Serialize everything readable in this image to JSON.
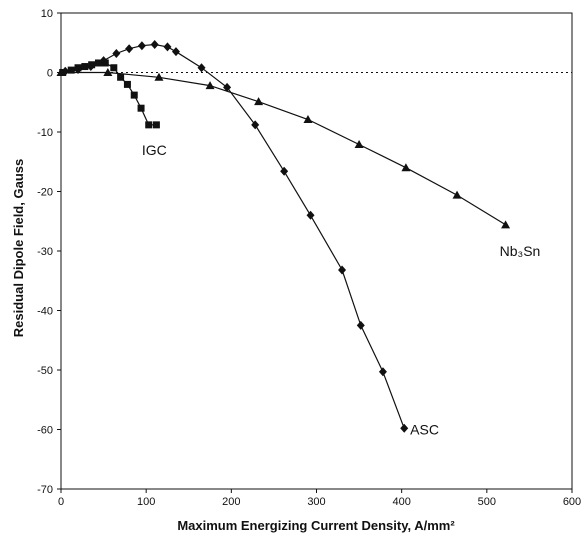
{
  "chart_data": {
    "type": "line",
    "title": "",
    "xlabel": "Maximum Energizing Current Density, A/mm²",
    "ylabel": "Residual Dipole Field, Gauss",
    "xlim": [
      0,
      600
    ],
    "ylim": [
      -70,
      10
    ],
    "xticks": [
      0,
      100,
      200,
      300,
      400,
      500,
      600
    ],
    "yticks": [
      -70,
      -60,
      -50,
      -40,
      -30,
      -20,
      -10,
      0,
      10
    ],
    "zero_line": "dotted",
    "grid": false,
    "legend": "none",
    "series": [
      {
        "name": "IGC",
        "label_at": [
          95,
          -13
        ],
        "marker": "square",
        "color": "#111111",
        "x": [
          2,
          12,
          20,
          28,
          36,
          44,
          52,
          62,
          70,
          78,
          86,
          94,
          103,
          112
        ],
        "y": [
          0,
          0.4,
          0.8,
          1.0,
          1.3,
          1.6,
          1.6,
          0.8,
          -0.8,
          -2.0,
          -3.8,
          -6.0,
          -8.8,
          -8.8
        ]
      },
      {
        "name": "ASC",
        "label_at": [
          410,
          -60
        ],
        "marker": "diamond",
        "color": "#111111",
        "x": [
          5,
          20,
          35,
          50,
          65,
          80,
          95,
          110,
          125,
          135,
          165,
          195,
          228,
          262,
          293,
          330,
          352,
          378,
          403
        ],
        "y": [
          0.2,
          0.5,
          1.0,
          2.0,
          3.2,
          4.0,
          4.5,
          4.7,
          4.3,
          3.5,
          0.8,
          -2.5,
          -8.8,
          -16.6,
          -24.0,
          -33.2,
          -42.5,
          -50.3,
          -59.8
        ]
      },
      {
        "name": "Nb3Sn",
        "display_name": "Nb₃Sn",
        "label_at": [
          515,
          -30
        ],
        "marker": "triangle",
        "color": "#111111",
        "x": [
          0,
          55,
          115,
          175,
          232,
          290,
          350,
          405,
          465,
          522
        ],
        "y": [
          0,
          0,
          -0.8,
          -2.2,
          -4.9,
          -7.9,
          -12.1,
          -16.0,
          -20.6,
          -25.6
        ]
      }
    ]
  }
}
